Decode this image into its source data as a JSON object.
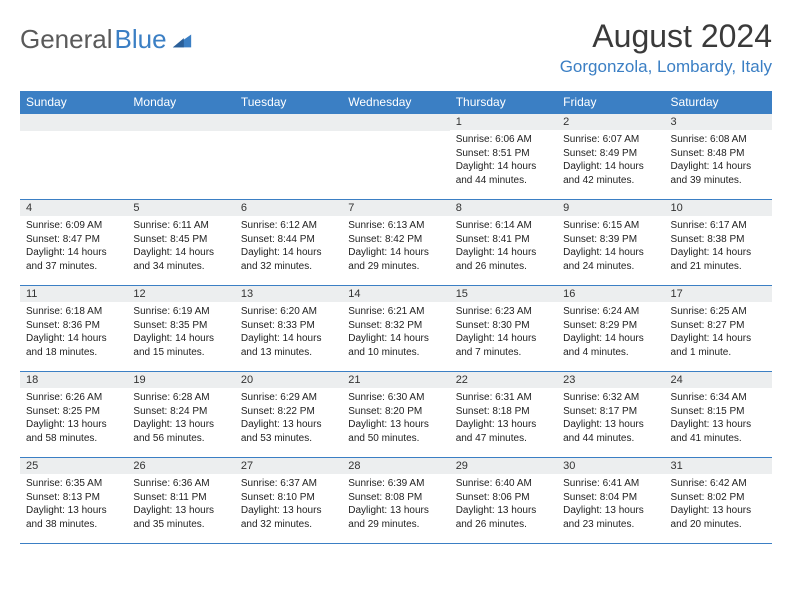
{
  "brand": {
    "name_part1": "General",
    "name_part2": "Blue"
  },
  "title": "August 2024",
  "location": "Gorgonzola, Lombardy, Italy",
  "dayHeaders": [
    "Sunday",
    "Monday",
    "Tuesday",
    "Wednesday",
    "Thursday",
    "Friday",
    "Saturday"
  ],
  "colors": {
    "accent": "#3b7fc4",
    "header_text": "#ffffff",
    "daynum_bg": "#eceeef",
    "text": "#222222",
    "title_text": "#3a3a3a"
  },
  "weeks": [
    [
      {
        "blank": true
      },
      {
        "blank": true
      },
      {
        "blank": true
      },
      {
        "blank": true
      },
      {
        "day": "1",
        "sunrise": "Sunrise: 6:06 AM",
        "sunset": "Sunset: 8:51 PM",
        "daylight": "Daylight: 14 hours and 44 minutes."
      },
      {
        "day": "2",
        "sunrise": "Sunrise: 6:07 AM",
        "sunset": "Sunset: 8:49 PM",
        "daylight": "Daylight: 14 hours and 42 minutes."
      },
      {
        "day": "3",
        "sunrise": "Sunrise: 6:08 AM",
        "sunset": "Sunset: 8:48 PM",
        "daylight": "Daylight: 14 hours and 39 minutes."
      }
    ],
    [
      {
        "day": "4",
        "sunrise": "Sunrise: 6:09 AM",
        "sunset": "Sunset: 8:47 PM",
        "daylight": "Daylight: 14 hours and 37 minutes."
      },
      {
        "day": "5",
        "sunrise": "Sunrise: 6:11 AM",
        "sunset": "Sunset: 8:45 PM",
        "daylight": "Daylight: 14 hours and 34 minutes."
      },
      {
        "day": "6",
        "sunrise": "Sunrise: 6:12 AM",
        "sunset": "Sunset: 8:44 PM",
        "daylight": "Daylight: 14 hours and 32 minutes."
      },
      {
        "day": "7",
        "sunrise": "Sunrise: 6:13 AM",
        "sunset": "Sunset: 8:42 PM",
        "daylight": "Daylight: 14 hours and 29 minutes."
      },
      {
        "day": "8",
        "sunrise": "Sunrise: 6:14 AM",
        "sunset": "Sunset: 8:41 PM",
        "daylight": "Daylight: 14 hours and 26 minutes."
      },
      {
        "day": "9",
        "sunrise": "Sunrise: 6:15 AM",
        "sunset": "Sunset: 8:39 PM",
        "daylight": "Daylight: 14 hours and 24 minutes."
      },
      {
        "day": "10",
        "sunrise": "Sunrise: 6:17 AM",
        "sunset": "Sunset: 8:38 PM",
        "daylight": "Daylight: 14 hours and 21 minutes."
      }
    ],
    [
      {
        "day": "11",
        "sunrise": "Sunrise: 6:18 AM",
        "sunset": "Sunset: 8:36 PM",
        "daylight": "Daylight: 14 hours and 18 minutes."
      },
      {
        "day": "12",
        "sunrise": "Sunrise: 6:19 AM",
        "sunset": "Sunset: 8:35 PM",
        "daylight": "Daylight: 14 hours and 15 minutes."
      },
      {
        "day": "13",
        "sunrise": "Sunrise: 6:20 AM",
        "sunset": "Sunset: 8:33 PM",
        "daylight": "Daylight: 14 hours and 13 minutes."
      },
      {
        "day": "14",
        "sunrise": "Sunrise: 6:21 AM",
        "sunset": "Sunset: 8:32 PM",
        "daylight": "Daylight: 14 hours and 10 minutes."
      },
      {
        "day": "15",
        "sunrise": "Sunrise: 6:23 AM",
        "sunset": "Sunset: 8:30 PM",
        "daylight": "Daylight: 14 hours and 7 minutes."
      },
      {
        "day": "16",
        "sunrise": "Sunrise: 6:24 AM",
        "sunset": "Sunset: 8:29 PM",
        "daylight": "Daylight: 14 hours and 4 minutes."
      },
      {
        "day": "17",
        "sunrise": "Sunrise: 6:25 AM",
        "sunset": "Sunset: 8:27 PM",
        "daylight": "Daylight: 14 hours and 1 minute."
      }
    ],
    [
      {
        "day": "18",
        "sunrise": "Sunrise: 6:26 AM",
        "sunset": "Sunset: 8:25 PM",
        "daylight": "Daylight: 13 hours and 58 minutes."
      },
      {
        "day": "19",
        "sunrise": "Sunrise: 6:28 AM",
        "sunset": "Sunset: 8:24 PM",
        "daylight": "Daylight: 13 hours and 56 minutes."
      },
      {
        "day": "20",
        "sunrise": "Sunrise: 6:29 AM",
        "sunset": "Sunset: 8:22 PM",
        "daylight": "Daylight: 13 hours and 53 minutes."
      },
      {
        "day": "21",
        "sunrise": "Sunrise: 6:30 AM",
        "sunset": "Sunset: 8:20 PM",
        "daylight": "Daylight: 13 hours and 50 minutes."
      },
      {
        "day": "22",
        "sunrise": "Sunrise: 6:31 AM",
        "sunset": "Sunset: 8:18 PM",
        "daylight": "Daylight: 13 hours and 47 minutes."
      },
      {
        "day": "23",
        "sunrise": "Sunrise: 6:32 AM",
        "sunset": "Sunset: 8:17 PM",
        "daylight": "Daylight: 13 hours and 44 minutes."
      },
      {
        "day": "24",
        "sunrise": "Sunrise: 6:34 AM",
        "sunset": "Sunset: 8:15 PM",
        "daylight": "Daylight: 13 hours and 41 minutes."
      }
    ],
    [
      {
        "day": "25",
        "sunrise": "Sunrise: 6:35 AM",
        "sunset": "Sunset: 8:13 PM",
        "daylight": "Daylight: 13 hours and 38 minutes."
      },
      {
        "day": "26",
        "sunrise": "Sunrise: 6:36 AM",
        "sunset": "Sunset: 8:11 PM",
        "daylight": "Daylight: 13 hours and 35 minutes."
      },
      {
        "day": "27",
        "sunrise": "Sunrise: 6:37 AM",
        "sunset": "Sunset: 8:10 PM",
        "daylight": "Daylight: 13 hours and 32 minutes."
      },
      {
        "day": "28",
        "sunrise": "Sunrise: 6:39 AM",
        "sunset": "Sunset: 8:08 PM",
        "daylight": "Daylight: 13 hours and 29 minutes."
      },
      {
        "day": "29",
        "sunrise": "Sunrise: 6:40 AM",
        "sunset": "Sunset: 8:06 PM",
        "daylight": "Daylight: 13 hours and 26 minutes."
      },
      {
        "day": "30",
        "sunrise": "Sunrise: 6:41 AM",
        "sunset": "Sunset: 8:04 PM",
        "daylight": "Daylight: 13 hours and 23 minutes."
      },
      {
        "day": "31",
        "sunrise": "Sunrise: 6:42 AM",
        "sunset": "Sunset: 8:02 PM",
        "daylight": "Daylight: 13 hours and 20 minutes."
      }
    ]
  ]
}
